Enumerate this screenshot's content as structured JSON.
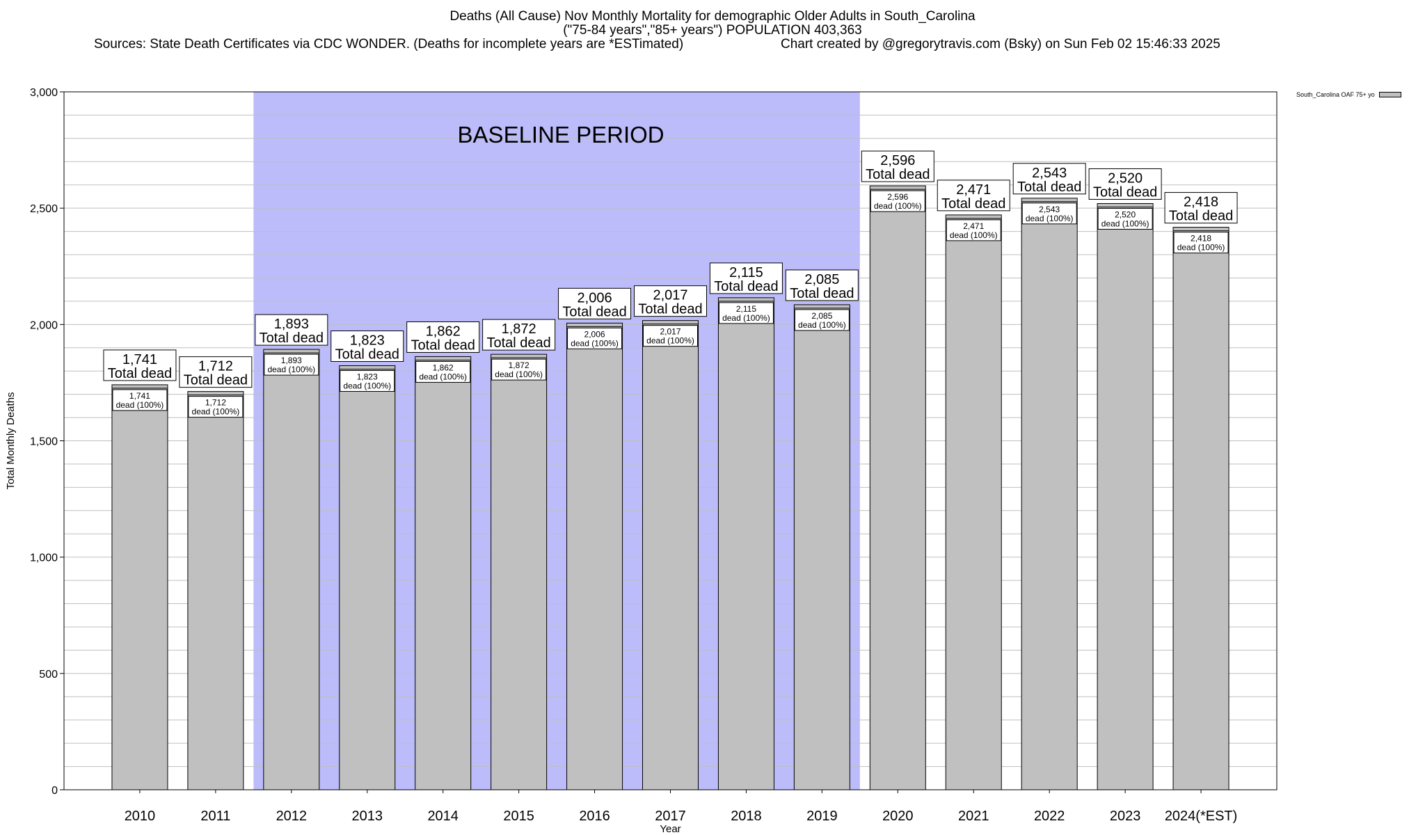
{
  "titles": {
    "line1": "Deaths (All Cause) Nov Monthly Mortality for demographic Older Adults in South_Carolina",
    "line2": "(\"75-84 years\",\"85+ years\") POPULATION 403,363",
    "line3": "Sources: State Death Certificates via CDC WONDER. (Deaths for incomplete years are *ESTimated)",
    "line4": "Chart created by @gregorytravis.com (Bsky) on Sun Feb 02 15:46:33 2025"
  },
  "colors": {
    "bar": "#c0c0c0",
    "baseline_band": "#bcbcfb",
    "grid": "#bfbfbf"
  },
  "chart_data": {
    "type": "bar",
    "xlabel": "Year",
    "ylabel": "Total Monthly Deaths",
    "ylim": [
      0,
      3000
    ],
    "yticks": [
      0,
      500,
      1000,
      1500,
      2000,
      2500,
      3000
    ],
    "ytick_labels": [
      "0",
      "500",
      "1,000",
      "1,500",
      "2,000",
      "2,500",
      "3,000"
    ],
    "grid": true,
    "legend": {
      "placement": "top-right-outside",
      "entry": "South_Carolina OAF 75+ yo"
    },
    "baseline": {
      "label": "BASELINE PERIOD",
      "from": "2012",
      "to": "2019"
    },
    "categories": [
      "2010",
      "2011",
      "2012",
      "2013",
      "2014",
      "2015",
      "2016",
      "2017",
      "2018",
      "2019",
      "2020",
      "2021",
      "2022",
      "2023",
      "2024(*EST)"
    ],
    "series": [
      {
        "name": "South_Carolina OAF 75+ yo",
        "values": [
          1741,
          1712,
          1893,
          1823,
          1862,
          1872,
          2006,
          2017,
          2115,
          2085,
          2596,
          2471,
          2543,
          2520,
          2418
        ]
      }
    ],
    "value_labels": [
      "1,741",
      "1,712",
      "1,893",
      "1,823",
      "1,862",
      "1,872",
      "2,006",
      "2,017",
      "2,115",
      "2,085",
      "2,596",
      "2,471",
      "2,543",
      "2,520",
      "2,418"
    ],
    "total_label": "Total dead",
    "inner_label_suffix": "dead (100%)"
  }
}
